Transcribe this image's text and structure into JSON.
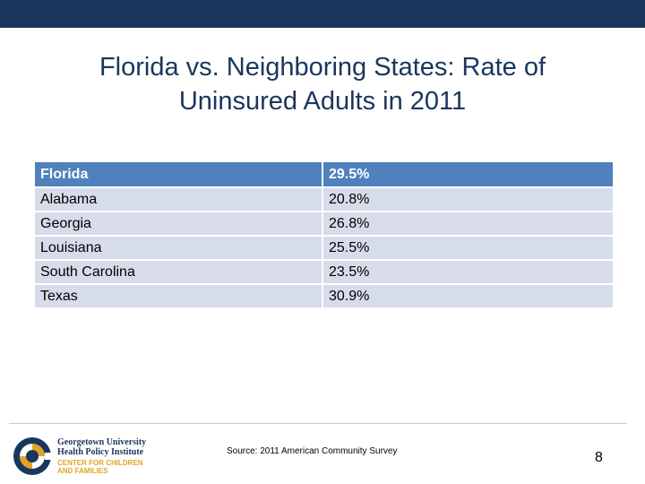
{
  "slide": {
    "title_line1": "Florida vs. Neighboring States: Rate of",
    "title_line2": "Uninsured Adults in 2011"
  },
  "table": {
    "header": {
      "state": "Florida",
      "rate": "29.5%"
    },
    "rows": [
      {
        "state": "Alabama",
        "rate": "20.8%"
      },
      {
        "state": "Georgia",
        "rate": "26.8%"
      },
      {
        "state": "Louisiana",
        "rate": "25.5%"
      },
      {
        "state": "South Carolina",
        "rate": "23.5%"
      },
      {
        "state": "Texas",
        "rate": "30.9%"
      }
    ]
  },
  "footer": {
    "logo": {
      "line1": "Georgetown University",
      "line2": "Health Policy Institute",
      "line3": "CENTER FOR CHILDREN",
      "line4": "AND FAMILIES"
    },
    "source": "Source: 2011 American Community Survey",
    "page_number": "8"
  },
  "colors": {
    "brand_navy": "#1b365d",
    "header_blue": "#4f81bd",
    "row_fill": "#d6dce9",
    "logo_gold": "#e0a526"
  }
}
